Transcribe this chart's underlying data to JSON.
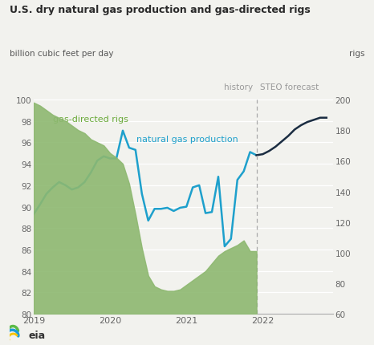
{
  "title": "U.S. dry natural gas production and gas-directed rigs",
  "ylabel_left": "billion cubic feet per day",
  "ylabel_right": "rigs",
  "ylim_left": [
    80,
    100
  ],
  "ylim_right": [
    60,
    200
  ],
  "yticks_left": [
    80,
    82,
    84,
    86,
    88,
    90,
    92,
    94,
    96,
    98,
    100
  ],
  "yticks_right": [
    60,
    80,
    100,
    120,
    140,
    160,
    180,
    200
  ],
  "history_line_x": 2021.917,
  "history_label": "history",
  "forecast_label": "STEO forecast",
  "gas_label": "gas-directed rigs",
  "prod_label": "natural gas production",
  "bg_color": "#f2f2ee",
  "green_fill_color": "#8db870",
  "prod_color_history": "#1ea0cc",
  "prod_color_forecast": "#1b2d42",
  "gas_months": [
    2019.0,
    2019.083,
    2019.167,
    2019.25,
    2019.333,
    2019.417,
    2019.5,
    2019.583,
    2019.667,
    2019.75,
    2019.833,
    2019.917,
    2020.0,
    2020.083,
    2020.167,
    2020.25,
    2020.333,
    2020.417,
    2020.5,
    2020.583,
    2020.667,
    2020.75,
    2020.833,
    2020.917,
    2021.0,
    2021.083,
    2021.167,
    2021.25,
    2021.333,
    2021.417,
    2021.5,
    2021.583,
    2021.667,
    2021.75,
    2021.833,
    2021.917
  ],
  "gas_prod_history": [
    89.3,
    90.2,
    91.2,
    91.8,
    92.3,
    92.0,
    91.6,
    91.8,
    92.3,
    93.2,
    94.3,
    94.7,
    94.5,
    94.5,
    97.1,
    95.5,
    95.3,
    91.2,
    88.7,
    89.8,
    89.8,
    89.9,
    89.6,
    89.9,
    90.0,
    91.8,
    92.0,
    89.4,
    89.5,
    92.8,
    86.3,
    87.0,
    92.5,
    93.3,
    95.1,
    94.8
  ],
  "fore_months": [
    2021.917,
    2022.0,
    2022.083,
    2022.167,
    2022.25,
    2022.333,
    2022.417,
    2022.5,
    2022.583,
    2022.667,
    2022.75,
    2022.833
  ],
  "gas_prod_forecast": [
    94.8,
    94.9,
    95.2,
    95.6,
    96.1,
    96.6,
    97.2,
    97.6,
    97.9,
    98.1,
    98.3,
    98.3
  ],
  "rig_months": [
    2019.0,
    2019.083,
    2019.167,
    2019.25,
    2019.333,
    2019.417,
    2019.5,
    2019.583,
    2019.667,
    2019.75,
    2019.833,
    2019.917,
    2020.0,
    2020.083,
    2020.167,
    2020.25,
    2020.333,
    2020.417,
    2020.5,
    2020.583,
    2020.667,
    2020.75,
    2020.833,
    2020.917,
    2021.0,
    2021.083,
    2021.167,
    2021.25,
    2021.333,
    2021.417,
    2021.5,
    2021.583,
    2021.667,
    2021.75,
    2021.833,
    2021.917
  ],
  "rig_count": [
    198,
    196,
    193,
    190,
    188,
    186,
    183,
    180,
    178,
    174,
    172,
    170,
    165,
    162,
    158,
    145,
    125,
    103,
    85,
    78,
    76,
    75,
    75,
    76,
    79,
    82,
    85,
    88,
    93,
    98,
    101,
    103,
    105,
    108,
    101,
    101
  ],
  "xlim": [
    2019.0,
    2022.917
  ],
  "xticks": [
    2019.0,
    2020.0,
    2021.0,
    2022.0
  ],
  "xticklabels": [
    "2019",
    "2020",
    "2021",
    "2022"
  ]
}
